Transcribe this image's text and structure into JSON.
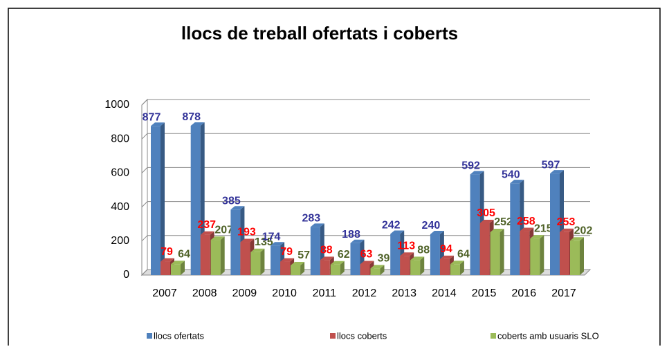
{
  "chart_data": {
    "type": "bar3d",
    "title": "llocs de treball ofertats i coberts",
    "categories": [
      "2007",
      "2008",
      "2009",
      "2010",
      "2011",
      "2012",
      "2013",
      "2014",
      "2015",
      "2016",
      "2017"
    ],
    "series": [
      {
        "name": "llocs ofertats",
        "color": "#4f81bd",
        "label_color": "#333399",
        "values": [
          877,
          878,
          385,
          174,
          283,
          188,
          242,
          240,
          592,
          540,
          597
        ]
      },
      {
        "name": "llocs coberts",
        "color": "#c0504d",
        "label_color": "#ff0000",
        "values": [
          79,
          237,
          193,
          79,
          88,
          63,
          113,
          94,
          305,
          258,
          253
        ]
      },
      {
        "name": "coberts amb usuaris SLO",
        "color": "#9bbb59",
        "label_color": "#4f6228",
        "values": [
          64,
          207,
          135,
          57,
          62,
          39,
          88,
          64,
          252,
          215,
          202
        ]
      }
    ],
    "ylim": [
      0,
      1000
    ],
    "yticks": [
      0,
      200,
      400,
      600,
      800,
      1000
    ],
    "grid": true,
    "legend": "bottom"
  }
}
